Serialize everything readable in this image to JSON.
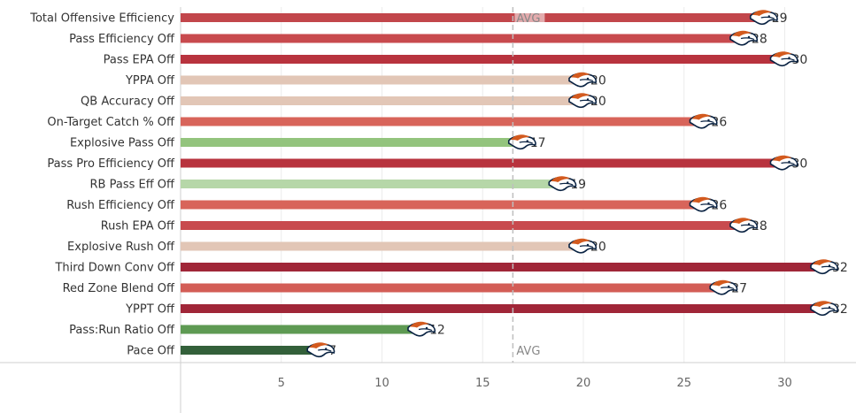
{
  "chart_data": {
    "type": "bar",
    "orientation": "horizontal",
    "title": "",
    "xlabel": "",
    "ylabel": "",
    "xlim": [
      0,
      32.5
    ],
    "x_ticks": [
      5,
      10,
      15,
      20,
      25,
      30
    ],
    "grid": true,
    "reference_line": {
      "label": "AVG",
      "value": 16.5
    },
    "marker_icon": "broncos-logo-icon",
    "categories": [
      "Total Offensive Efficiency",
      "Pass Efficiency Off",
      "Pass EPA Off",
      "YPPA Off",
      "QB Accuracy Off",
      "On-Target Catch % Off",
      "Explosive Pass Off",
      "Pass Pro Efficiency Off",
      "RB Pass Eff Off",
      "Rush Efficiency Off",
      "Rush EPA Off",
      "Explosive Rush Off",
      "Third Down Conv Off",
      "Red Zone Blend Off",
      "YPPT Off",
      "Pass:Run Ratio Off",
      "Pace Off"
    ],
    "values": [
      29,
      28,
      30,
      20,
      20,
      26,
      17,
      30,
      19,
      26,
      28,
      20,
      32,
      27,
      32,
      12,
      7
    ],
    "colors": [
      "#c2464b",
      "#c84a4e",
      "#b8333e",
      "#e2c6b6",
      "#e2c6b6",
      "#d8645a",
      "#93c47d",
      "#b8333e",
      "#b6d7a8",
      "#d8645a",
      "#c84a4e",
      "#e2c6b6",
      "#a02638",
      "#d35d56",
      "#a02638",
      "#5e9a53",
      "#33603a"
    ]
  }
}
